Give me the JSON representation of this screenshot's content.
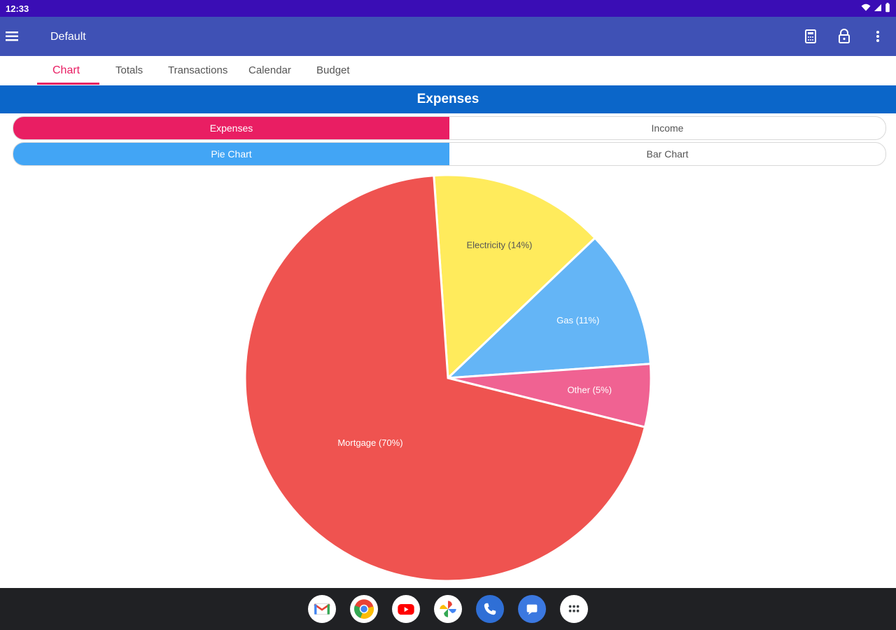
{
  "status_bar": {
    "time": "12:33"
  },
  "app_bar": {
    "title": "Default"
  },
  "tabs": [
    {
      "label": "Chart",
      "active": true
    },
    {
      "label": "Totals"
    },
    {
      "label": "Transactions"
    },
    {
      "label": "Calendar"
    },
    {
      "label": "Budget"
    }
  ],
  "banner": {
    "title": "Expenses"
  },
  "toggle_type": {
    "left": "Expenses",
    "right": "Income",
    "selected": "Expenses"
  },
  "toggle_chart": {
    "left": "Pie Chart",
    "right": "Bar Chart",
    "selected": "Pie Chart"
  },
  "chart_data": {
    "type": "pie",
    "slices": [
      {
        "label": "Electricity (14%)",
        "value": 14,
        "color": "#ffeb5c"
      },
      {
        "label": "Gas (11%)",
        "value": 11,
        "color": "#64b5f6"
      },
      {
        "label": "Other (5%)",
        "value": 5,
        "color": "#f06292"
      },
      {
        "label": "Mortgage (70%)",
        "value": 70,
        "color": "#ef5350"
      }
    ]
  },
  "dock": {
    "apps": [
      "gmail-icon",
      "chrome-icon",
      "youtube-icon",
      "photos-icon",
      "phone-icon",
      "messages-icon",
      "app-drawer-icon"
    ]
  },
  "colors": {
    "status_bar": "#3a0db5",
    "app_bar": "#3f51b5",
    "accent": "#e91e63",
    "banner": "#0b66c9",
    "toggle_blue": "#42a5f5"
  }
}
